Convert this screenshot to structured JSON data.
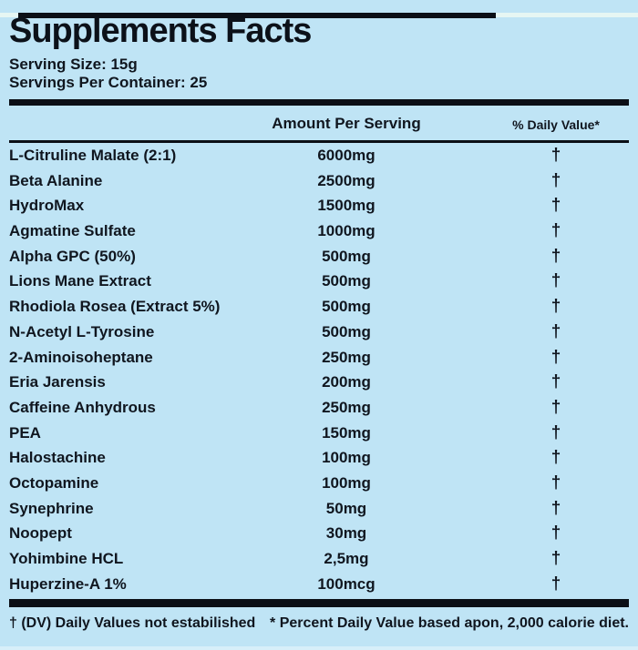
{
  "label": {
    "title": "Supplements Facts",
    "serving_size": "Serving Size: 15g",
    "servings_per_container": "Servings Per Container: 25",
    "columns": {
      "amount": "Amount Per Serving",
      "daily_value": "% Daily Value*"
    },
    "rows": [
      {
        "name": "L-Citruline Malate (2:1)",
        "amount": "6000mg",
        "dv": "†"
      },
      {
        "name": "Beta Alanine",
        "amount": "2500mg",
        "dv": "†"
      },
      {
        "name": "HydroMax",
        "amount": "1500mg",
        "dv": "†"
      },
      {
        "name": "Agmatine Sulfate",
        "amount": "1000mg",
        "dv": "†"
      },
      {
        "name": "Alpha GPC (50%)",
        "amount": "500mg",
        "dv": "†"
      },
      {
        "name": "Lions Mane Extract",
        "amount": "500mg",
        "dv": "†"
      },
      {
        "name": "Rhodiola Rosea (Extract 5%)",
        "amount": "500mg",
        "dv": "†"
      },
      {
        "name": "N-Acetyl L-Tyrosine",
        "amount": "500mg",
        "dv": "†"
      },
      {
        "name": "2-Aminoisoheptane",
        "amount": "250mg",
        "dv": "†"
      },
      {
        "name": "Eria Jarensis",
        "amount": "200mg",
        "dv": "†"
      },
      {
        "name": "Caffeine Anhydrous",
        "amount": "250mg",
        "dv": "†"
      },
      {
        "name": "PEA",
        "amount": "150mg",
        "dv": "†"
      },
      {
        "name": "Halostachine",
        "amount": "100mg",
        "dv": "†"
      },
      {
        "name": "Octopamine",
        "amount": "100mg",
        "dv": "†"
      },
      {
        "name": "Synephrine",
        "amount": "50mg",
        "dv": "†"
      },
      {
        "name": "Noopept",
        "amount": "30mg",
        "dv": "†"
      },
      {
        "name": "Yohimbine HCL",
        "amount": "2,5mg",
        "dv": "†"
      },
      {
        "name": "Huperzine-A 1%",
        "amount": "100mcg",
        "dv": "†"
      }
    ],
    "footnotes": {
      "left": "† (DV) Daily Values not estabilished",
      "right": "* Percent Daily Value based apon, 2,000 calorie diet."
    },
    "colors": {
      "background": "#bfe4f5",
      "text": "#10161f",
      "rule": "#0b0f16",
      "top_strip": "#e6f6f3"
    }
  }
}
